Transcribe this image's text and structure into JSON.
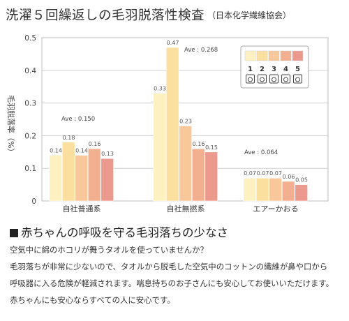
{
  "header": {
    "title": "洗濯５回繰返しの毛羽脱落性検査",
    "subtitle": "（日本化学繊維協会）"
  },
  "chart_data": {
    "type": "bar",
    "ylabel": "毛羽脱落率（%）",
    "ylim": [
      0,
      0.5
    ],
    "yticks": [
      "0",
      "0.1",
      "0.2",
      "0.3",
      "0.4",
      "0.5"
    ],
    "categories": [
      "自社普通系",
      "自社無撚系",
      "エアーかおる"
    ],
    "series": [
      {
        "name": "1",
        "values": [
          0.14,
          0.33,
          0.07
        ]
      },
      {
        "name": "2",
        "values": [
          0.18,
          0.47,
          0.07
        ]
      },
      {
        "name": "3",
        "values": [
          0.14,
          0.23,
          0.07
        ]
      },
      {
        "name": "4",
        "values": [
          0.16,
          0.16,
          0.06
        ]
      },
      {
        "name": "5",
        "values": [
          0.13,
          0.15,
          0.05
        ]
      }
    ],
    "value_labels": [
      [
        "0.14",
        "0.18",
        "0.14",
        "0.16",
        "0.13"
      ],
      [
        "0.33",
        "0.47",
        "0.23",
        "0.16",
        "0.15"
      ],
      [
        "0.07",
        "0.07",
        "0.07",
        "0.06",
        "0.05"
      ]
    ],
    "averages": [
      "Ave : 0.150",
      "Ave : 0.268",
      "Ave : 0.064"
    ],
    "colors": [
      "#fdf1c2",
      "#fbdf9f",
      "#f8c89a",
      "#f2b090",
      "#ec9a8e"
    ],
    "grid": true,
    "legend": "top-right"
  },
  "section": {
    "title": "赤ちゃんの呼吸を守る毛羽落ちの少なさ",
    "lines": [
      "空気中に綿のホコリが舞うタオルを使っていませんか？",
      "毛羽落ちが非常に少ないので、タオルから脱毛した空気中のコットンの繊維が鼻や口から",
      "呼吸器に入る危険が軽減されます。喘息持ちのお子さんにも安心してお使いいただけます。",
      "赤ちゃんにも安心ならすべての人に安心です。"
    ]
  }
}
